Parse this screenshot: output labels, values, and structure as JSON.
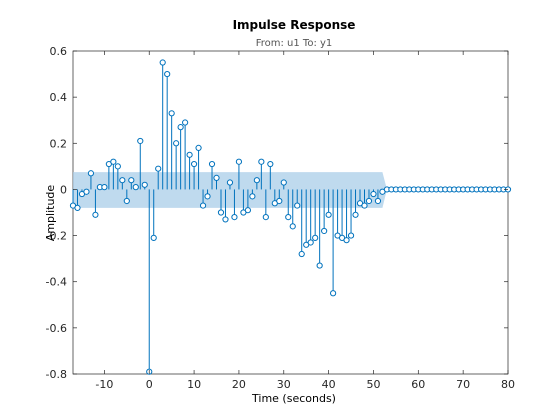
{
  "chart_data": {
    "type": "stem",
    "title": "Impulse Response",
    "subtitle": "From: u1  To: y1",
    "xlabel": "Time (seconds)",
    "ylabel": "Amplitude",
    "xlim": [
      -17,
      80
    ],
    "ylim": [
      -0.8,
      0.6
    ],
    "xticks": [
      -10,
      0,
      10,
      20,
      30,
      40,
      50,
      60,
      70,
      80
    ],
    "xtick_labels": [
      "-10",
      "0",
      "10",
      "20",
      "30",
      "40",
      "50",
      "60",
      "70",
      "80"
    ],
    "yticks": [
      -0.8,
      -0.6,
      -0.4,
      -0.2,
      0,
      0.2,
      0.4,
      0.6
    ],
    "ytick_labels": [
      "-0.8",
      "-0.6",
      "-0.4",
      "-0.2",
      "0",
      "0.2",
      "0.4",
      "0.6"
    ],
    "grid": false,
    "colors": {
      "stem": "#0072bd",
      "band": "#a9cde8",
      "axes": "#262626"
    },
    "confidence_band": {
      "x_start": -17,
      "x_end": 52,
      "decay_end": 53,
      "upper": 0.075,
      "lower": -0.08
    },
    "series": [
      {
        "x": [
          -17,
          -16,
          -15,
          -14,
          -13,
          -12,
          -11,
          -10,
          -9,
          -8,
          -7,
          -6,
          -5,
          -4,
          -3,
          -2,
          -1,
          0,
          1,
          2,
          3,
          4,
          5,
          6,
          7,
          8,
          9,
          10,
          11,
          12,
          13,
          14,
          15,
          16,
          17,
          18,
          19,
          20,
          21,
          22,
          23,
          24,
          25,
          26,
          27,
          28,
          29,
          30,
          31,
          32,
          33,
          34,
          35,
          36,
          37,
          38,
          39,
          40,
          41,
          42,
          43,
          44,
          45,
          46,
          47,
          48,
          49,
          50,
          51,
          52,
          53,
          54,
          55,
          56,
          57,
          58,
          59,
          60,
          61,
          62,
          63,
          64,
          65,
          66,
          67,
          68,
          69,
          70,
          71,
          72,
          73,
          74,
          75,
          76,
          77,
          78,
          79,
          80
        ],
        "y": [
          -0.07,
          -0.08,
          -0.02,
          -0.01,
          0.07,
          -0.11,
          0.01,
          0.01,
          0.11,
          0.12,
          0.1,
          0.04,
          -0.05,
          0.04,
          0.01,
          0.21,
          0.02,
          -0.79,
          -0.21,
          0.09,
          0.55,
          0.5,
          0.33,
          0.2,
          0.27,
          0.29,
          0.15,
          0.11,
          0.18,
          -0.07,
          -0.03,
          0.11,
          0.05,
          -0.1,
          -0.13,
          0.03,
          -0.12,
          0.12,
          -0.1,
          -0.09,
          -0.03,
          0.04,
          0.12,
          -0.12,
          0.11,
          -0.06,
          -0.05,
          0.03,
          -0.12,
          -0.16,
          -0.07,
          -0.28,
          -0.24,
          -0.23,
          -0.21,
          -0.33,
          -0.18,
          -0.11,
          -0.45,
          -0.2,
          -0.21,
          -0.22,
          -0.2,
          -0.11,
          -0.06,
          -0.07,
          -0.05,
          -0.02,
          -0.05,
          -0.01,
          0,
          0,
          0,
          0,
          0,
          0,
          0,
          0,
          0,
          0,
          0,
          0,
          0,
          0,
          0,
          0,
          0,
          0,
          0,
          0,
          0,
          0,
          0,
          0,
          0,
          0,
          0,
          0
        ]
      }
    ]
  }
}
